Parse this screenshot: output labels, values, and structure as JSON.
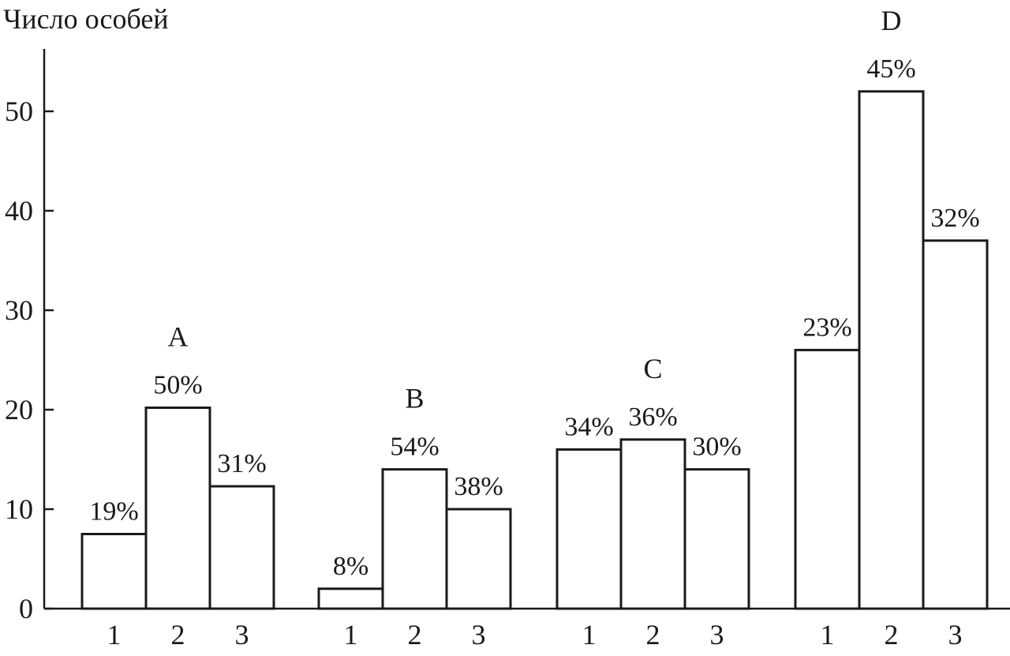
{
  "chart_data": {
    "type": "bar",
    "ylabel": "Число особей",
    "xlabel": "",
    "ylim": [
      0,
      56
    ],
    "yticks": [
      0,
      10,
      20,
      30,
      40,
      50
    ],
    "grid": false,
    "legend": "none",
    "groups": [
      {
        "name": "A",
        "categories": [
          "1",
          "2",
          "3"
        ],
        "values": [
          7.5,
          20.2,
          12.3
        ],
        "labels": [
          "19%",
          "50%",
          "31%"
        ]
      },
      {
        "name": "B",
        "categories": [
          "1",
          "2",
          "3"
        ],
        "values": [
          2,
          14,
          10
        ],
        "labels": [
          "8%",
          "54%",
          "38%"
        ]
      },
      {
        "name": "C",
        "categories": [
          "1",
          "2",
          "3"
        ],
        "values": [
          16,
          17,
          14
        ],
        "labels": [
          "34%",
          "36%",
          "30%"
        ]
      },
      {
        "name": "D",
        "categories": [
          "1",
          "2",
          "3"
        ],
        "values": [
          26,
          52,
          37
        ],
        "labels": [
          "23%",
          "45%",
          "32%"
        ]
      }
    ]
  },
  "colors": {
    "ink": "#1a1a1a",
    "bar_fill": "#ffffff",
    "background": "#ffffff"
  }
}
